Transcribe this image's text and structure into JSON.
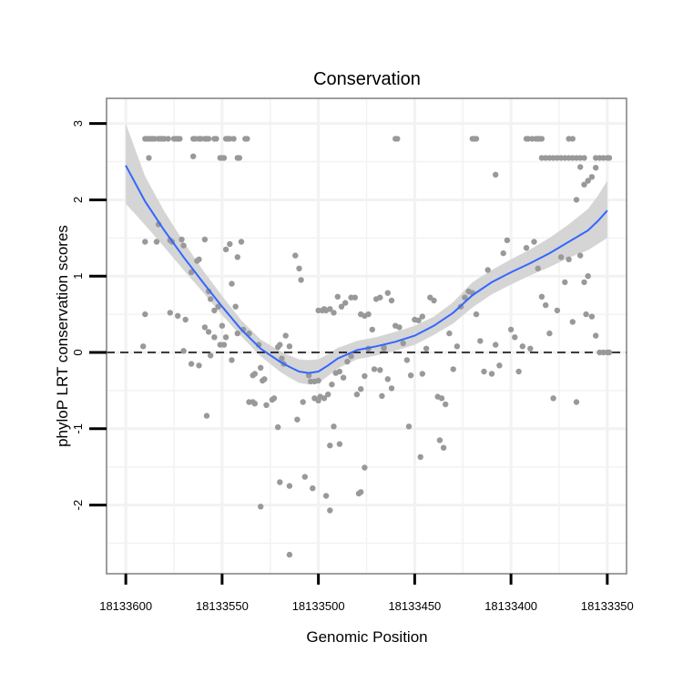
{
  "chart_data": {
    "type": "scatter",
    "title": "Conservation",
    "xlabel": "Genomic Position",
    "ylabel": "phyloP LRT conservation scores",
    "x_reversed": true,
    "xlim": [
      18133610,
      18133340
    ],
    "ylim": [
      -2.9,
      3.33
    ],
    "x_ticks": [
      18133600,
      18133550,
      18133500,
      18133450,
      18133400,
      18133350
    ],
    "x_tick_labels": [
      "18133600",
      "18133550",
      "18133500",
      "18133450",
      "18133400",
      "18133350"
    ],
    "y_ticks": [
      -2,
      -1,
      0,
      1,
      2,
      3
    ],
    "y_tick_labels": [
      "-2",
      "-1",
      "0",
      "1",
      "2",
      "3"
    ],
    "reference_line": {
      "y": 0,
      "style": "dashed"
    },
    "grid": true,
    "colors": {
      "points": "#999999",
      "smooth_line": "#3366ff",
      "ribbon": "#d3d3d3",
      "panel_border": "#7f7f7f",
      "grid": "#f2f2f2"
    },
    "points": [
      [
        18133590,
        2.8
      ],
      [
        18133589,
        2.8
      ],
      [
        18133588,
        2.8
      ],
      [
        18133587,
        2.8
      ],
      [
        18133586,
        2.8
      ],
      [
        18133585,
        2.8
      ],
      [
        18133583,
        2.8
      ],
      [
        18133582,
        2.8
      ],
      [
        18133581,
        2.8
      ],
      [
        18133580,
        2.8
      ],
      [
        18133578,
        2.8
      ],
      [
        18133575,
        2.8
      ],
      [
        18133574,
        2.8
      ],
      [
        18133573,
        2.8
      ],
      [
        18133572,
        2.8
      ],
      [
        18133565,
        2.8
      ],
      [
        18133564,
        2.8
      ],
      [
        18133562,
        2.8
      ],
      [
        18133561,
        2.8
      ],
      [
        18133559,
        2.8
      ],
      [
        18133558,
        2.8
      ],
      [
        18133557,
        2.8
      ],
      [
        18133554,
        2.8
      ],
      [
        18133553,
        2.8
      ],
      [
        18133547,
        2.8
      ],
      [
        18133546,
        2.8
      ],
      [
        18133538,
        2.8
      ],
      [
        18133537,
        2.8
      ],
      [
        18133588,
        2.55
      ],
      [
        18133565,
        2.57
      ],
      [
        18133551,
        2.55
      ],
      [
        18133550,
        2.55
      ],
      [
        18133549,
        2.55
      ],
      [
        18133542,
        2.55
      ],
      [
        18133541,
        2.55
      ],
      [
        18133548,
        2.8
      ],
      [
        18133544,
        2.8
      ],
      [
        18133590,
        1.45
      ],
      [
        18133584,
        1.45
      ],
      [
        18133577,
        1.47
      ],
      [
        18133571,
        1.48
      ],
      [
        18133570,
        1.4
      ],
      [
        18133559,
        1.48
      ],
      [
        18133548,
        1.35
      ],
      [
        18133546,
        1.42
      ],
      [
        18133542,
        1.25
      ],
      [
        18133540,
        1.45
      ],
      [
        18133577,
        0.52
      ],
      [
        18133591,
        0.08
      ],
      [
        18133590,
        0.5
      ],
      [
        18133583,
        1.68
      ],
      [
        18133576,
        1.45
      ],
      [
        18133573,
        0.48
      ],
      [
        18133569,
        0.43
      ],
      [
        18133566,
        1.05
      ],
      [
        18133563,
        1.2
      ],
      [
        18133562,
        1.22
      ],
      [
        18133557,
        0.8
      ],
      [
        18133556,
        0.7
      ],
      [
        18133554,
        0.55
      ],
      [
        18133552,
        0.6
      ],
      [
        18133550,
        0.35
      ],
      [
        18133548,
        0.2
      ],
      [
        18133545,
        0.9
      ],
      [
        18133543,
        0.6
      ],
      [
        18133570,
        0.02
      ],
      [
        18133566,
        -0.15
      ],
      [
        18133562,
        -0.17
      ],
      [
        18133559,
        0.33
      ],
      [
        18133557,
        0.27
      ],
      [
        18133556,
        -0.04
      ],
      [
        18133554,
        0.2
      ],
      [
        18133551,
        0.1
      ],
      [
        18133549,
        0.1
      ],
      [
        18133545,
        -0.1
      ],
      [
        18133558,
        -0.83
      ],
      [
        18133542,
        0.25
      ],
      [
        18133539,
        0.3
      ],
      [
        18133536,
        0.25
      ],
      [
        18133534,
        -0.3
      ],
      [
        18133533,
        -0.28
      ],
      [
        18133531,
        0.1
      ],
      [
        18133530,
        -0.2
      ],
      [
        18133529,
        -0.37
      ],
      [
        18133528,
        -0.35
      ],
      [
        18133536,
        -0.65
      ],
      [
        18133534,
        -0.65
      ],
      [
        18133533,
        -0.67
      ],
      [
        18133527,
        -0.69
      ],
      [
        18133524,
        -0.62
      ],
      [
        18133523,
        -0.6
      ],
      [
        18133521,
        0.07
      ],
      [
        18133520,
        0.1
      ],
      [
        18133519,
        -0.08
      ],
      [
        18133518,
        -0.15
      ],
      [
        18133517,
        0.22
      ],
      [
        18133515,
        0.08
      ],
      [
        18133512,
        1.27
      ],
      [
        18133510,
        1.1
      ],
      [
        18133509,
        0.95
      ],
      [
        18133508,
        -0.65
      ],
      [
        18133505,
        -0.3
      ],
      [
        18133504,
        -0.38
      ],
      [
        18133502,
        -0.38
      ],
      [
        18133500,
        -0.37
      ],
      [
        18133500,
        0.55
      ],
      [
        18133498,
        0.55
      ],
      [
        18133497,
        0.57
      ],
      [
        18133496,
        0.55
      ],
      [
        18133494,
        0.57
      ],
      [
        18133492,
        0.52
      ],
      [
        18133490,
        0.73
      ],
      [
        18133488,
        0.6
      ],
      [
        18133486,
        0.65
      ],
      [
        18133483,
        0.72
      ],
      [
        18133481,
        0.72
      ],
      [
        18133478,
        0.5
      ],
      [
        18133476,
        0.48
      ],
      [
        18133474,
        0.5
      ],
      [
        18133472,
        0.3
      ],
      [
        18133470,
        0.7
      ],
      [
        18133468,
        0.72
      ],
      [
        18133466,
        0.05
      ],
      [
        18133464,
        0.78
      ],
      [
        18133462,
        0.68
      ],
      [
        18133502,
        -0.6
      ],
      [
        18133500,
        -0.63
      ],
      [
        18133499,
        -0.58
      ],
      [
        18133497,
        -0.6
      ],
      [
        18133495,
        -0.55
      ],
      [
        18133493,
        -0.42
      ],
      [
        18133491,
        -0.27
      ],
      [
        18133489,
        -0.25
      ],
      [
        18133487,
        -0.33
      ],
      [
        18133485,
        -0.12
      ],
      [
        18133483,
        -0.05
      ],
      [
        18133480,
        -0.55
      ],
      [
        18133478,
        -0.48
      ],
      [
        18133476,
        -0.31
      ],
      [
        18133474,
        0.05
      ],
      [
        18133471,
        -0.22
      ],
      [
        18133468,
        -0.23
      ],
      [
        18133466,
        0.07
      ],
      [
        18133464,
        -0.35
      ],
      [
        18133462,
        -0.47
      ],
      [
        18133460,
        0.35
      ],
      [
        18133458,
        0.33
      ],
      [
        18133456,
        0.12
      ],
      [
        18133454,
        -0.1
      ],
      [
        18133452,
        -0.3
      ],
      [
        18133450,
        0.43
      ],
      [
        18133448,
        0.42
      ],
      [
        18133446,
        0.47
      ],
      [
        18133444,
        0.05
      ],
      [
        18133442,
        0.72
      ],
      [
        18133440,
        0.68
      ],
      [
        18133438,
        -0.58
      ],
      [
        18133436,
        -0.6
      ],
      [
        18133434,
        -0.68
      ],
      [
        18133432,
        0.25
      ],
      [
        18133430,
        -0.22
      ],
      [
        18133428,
        0.08
      ],
      [
        18133426,
        0.6
      ],
      [
        18133424,
        0.72
      ],
      [
        18133422,
        0.8
      ],
      [
        18133420,
        0.78
      ],
      [
        18133418,
        0.5
      ],
      [
        18133416,
        0.15
      ],
      [
        18133414,
        -0.25
      ],
      [
        18133412,
        1.08
      ],
      [
        18133410,
        -0.28
      ],
      [
        18133408,
        0.1
      ],
      [
        18133406,
        -0.17
      ],
      [
        18133404,
        1.3
      ],
      [
        18133402,
        1.47
      ],
      [
        18133400,
        0.3
      ],
      [
        18133398,
        0.2
      ],
      [
        18133396,
        -0.25
      ],
      [
        18133394,
        0.08
      ],
      [
        18133392,
        1.37
      ],
      [
        18133390,
        0.05
      ],
      [
        18133388,
        1.45
      ],
      [
        18133386,
        1.1
      ],
      [
        18133384,
        0.73
      ],
      [
        18133382,
        0.62
      ],
      [
        18133380,
        0.25
      ],
      [
        18133378,
        -0.6
      ],
      [
        18133376,
        0.55
      ],
      [
        18133374,
        1.25
      ],
      [
        18133372,
        0.92
      ],
      [
        18133370,
        1.22
      ],
      [
        18133368,
        0.4
      ],
      [
        18133366,
        -0.65
      ],
      [
        18133364,
        1.27
      ],
      [
        18133362,
        0.92
      ],
      [
        18133360,
        1.0
      ],
      [
        18133358,
        0.47
      ],
      [
        18133356,
        0.22
      ],
      [
        18133354,
        0.0
      ],
      [
        18133352,
        0.0
      ],
      [
        18133350,
        0.0
      ],
      [
        18133349,
        0.0
      ],
      [
        18133361,
        0.5
      ],
      [
        18133521,
        -0.98
      ],
      [
        18133511,
        -0.88
      ],
      [
        18133507,
        -1.63
      ],
      [
        18133503,
        -1.78
      ],
      [
        18133494,
        -1.22
      ],
      [
        18133492,
        -0.97
      ],
      [
        18133489,
        -1.2
      ],
      [
        18133479,
        -1.85
      ],
      [
        18133476,
        -1.51
      ],
      [
        18133467,
        -0.57
      ],
      [
        18133453,
        -0.97
      ],
      [
        18133447,
        -1.37
      ],
      [
        18133437,
        -1.15
      ],
      [
        18133435,
        -1.25
      ],
      [
        18133446,
        -0.28
      ],
      [
        18133530,
        -2.02
      ],
      [
        18133520,
        -1.7
      ],
      [
        18133515,
        -1.75
      ],
      [
        18133496,
        -1.88
      ],
      [
        18133494,
        -2.07
      ],
      [
        18133478,
        -1.83
      ],
      [
        18133515,
        -2.65
      ],
      [
        18133460,
        2.8
      ],
      [
        18133459,
        2.8
      ],
      [
        18133420,
        2.8
      ],
      [
        18133419,
        2.8
      ],
      [
        18133418,
        2.8
      ],
      [
        18133392,
        2.8
      ],
      [
        18133391,
        2.8
      ],
      [
        18133389,
        2.8
      ],
      [
        18133387,
        2.8
      ],
      [
        18133386,
        2.8
      ],
      [
        18133385,
        2.8
      ],
      [
        18133384,
        2.8
      ],
      [
        18133408,
        2.33
      ],
      [
        18133384,
        2.55
      ],
      [
        18133382,
        2.55
      ],
      [
        18133380,
        2.55
      ],
      [
        18133378,
        2.55
      ],
      [
        18133376,
        2.55
      ],
      [
        18133374,
        2.55
      ],
      [
        18133372,
        2.55
      ],
      [
        18133370,
        2.55
      ],
      [
        18133368,
        2.55
      ],
      [
        18133366,
        2.55
      ],
      [
        18133364,
        2.55
      ],
      [
        18133362,
        2.55
      ],
      [
        18133356,
        2.55
      ],
      [
        18133354,
        2.55
      ],
      [
        18133352,
        2.55
      ],
      [
        18133350,
        2.55
      ],
      [
        18133349,
        2.55
      ],
      [
        18133364,
        2.43
      ],
      [
        18133370,
        2.8
      ],
      [
        18133368,
        2.8
      ],
      [
        18133366,
        2.0
      ],
      [
        18133362,
        2.2
      ],
      [
        18133360,
        2.25
      ],
      [
        18133358,
        2.3
      ],
      [
        18133356,
        2.42
      ]
    ],
    "smooth": {
      "x": [
        18133600,
        18133590,
        18133580,
        18133570,
        18133560,
        18133550,
        18133540,
        18133530,
        18133520,
        18133515,
        18133510,
        18133505,
        18133500,
        18133495,
        18133490,
        18133480,
        18133470,
        18133460,
        18133450,
        18133440,
        18133430,
        18133420,
        18133410,
        18133400,
        18133390,
        18133380,
        18133370,
        18133360,
        18133355,
        18133350
      ],
      "y": [
        2.45,
        1.98,
        1.6,
        1.25,
        0.92,
        0.6,
        0.3,
        0.05,
        -0.12,
        -0.19,
        -0.25,
        -0.27,
        -0.25,
        -0.17,
        -0.08,
        0.03,
        0.08,
        0.14,
        0.22,
        0.35,
        0.52,
        0.75,
        0.92,
        1.05,
        1.17,
        1.3,
        1.45,
        1.6,
        1.72,
        1.86
      ],
      "lower": [
        1.95,
        1.67,
        1.38,
        1.08,
        0.79,
        0.49,
        0.21,
        -0.05,
        -0.25,
        -0.33,
        -0.4,
        -0.42,
        -0.4,
        -0.31,
        -0.21,
        -0.09,
        -0.04,
        0.02,
        0.1,
        0.23,
        0.38,
        0.59,
        0.76,
        0.89,
        1.01,
        1.12,
        1.24,
        1.34,
        1.42,
        1.5
      ],
      "upper": [
        3.0,
        2.31,
        1.85,
        1.45,
        1.08,
        0.74,
        0.42,
        0.17,
        0.02,
        -0.04,
        -0.09,
        -0.1,
        -0.09,
        -0.02,
        0.06,
        0.15,
        0.2,
        0.27,
        0.35,
        0.47,
        0.66,
        0.92,
        1.08,
        1.22,
        1.35,
        1.5,
        1.68,
        1.88,
        2.05,
        2.25
      ]
    }
  }
}
